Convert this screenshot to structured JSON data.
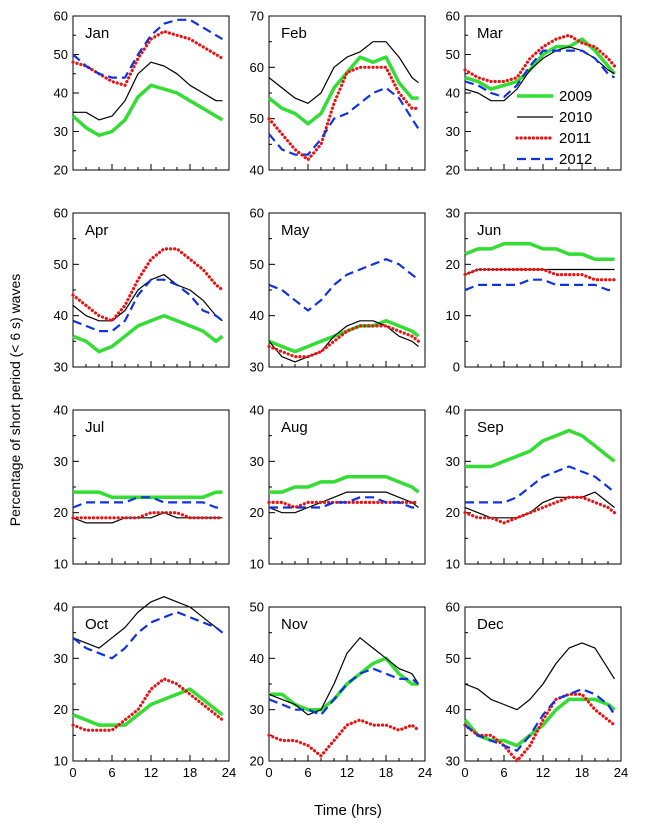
{
  "figure": {
    "ylabel": "Percentage of short period (< 6 s) waves",
    "xlabel": "Time (hrs)",
    "x_ticks": [
      "0",
      "6",
      "12",
      "18",
      "24"
    ],
    "legend": {
      "placement": "inside Mar panel, lower-right",
      "entries": [
        "2009",
        "2010",
        "2011",
        "2012"
      ]
    }
  },
  "series_styles": {
    "2009": {
      "color": "#33dd33",
      "dash": "solid",
      "width": 3.5
    },
    "2010": {
      "color": "#000000",
      "dash": "solid",
      "width": 1.2
    },
    "2011": {
      "color": "#ee1111",
      "dash": "dotted",
      "width": 3.2
    },
    "2012": {
      "color": "#1133dd",
      "dash": "dashed",
      "width": 2.2
    }
  },
  "chart_data": [
    {
      "type": "line",
      "title": "Jan",
      "xlim": [
        0,
        24
      ],
      "ylim": [
        20,
        60
      ],
      "yticks": [
        20,
        30,
        40,
        50,
        60
      ],
      "x": [
        0,
        2,
        4,
        6,
        8,
        10,
        12,
        14,
        16,
        18,
        20,
        22,
        23
      ],
      "series": [
        {
          "name": "2009",
          "values": [
            34,
            31,
            29,
            30,
            33,
            39,
            42,
            41,
            40,
            38,
            36,
            34,
            33
          ]
        },
        {
          "name": "2010",
          "values": [
            35,
            35,
            33,
            34,
            38,
            45,
            48,
            47,
            45,
            42,
            40,
            38,
            38
          ]
        },
        {
          "name": "2011",
          "values": [
            48,
            47,
            45,
            43,
            42,
            49,
            54,
            56,
            55,
            54,
            52,
            50,
            49
          ]
        },
        {
          "name": "2012",
          "values": [
            50,
            47,
            45,
            44,
            44,
            50,
            55,
            58,
            59,
            59,
            57,
            55,
            54
          ]
        }
      ]
    },
    {
      "type": "line",
      "title": "Feb",
      "xlim": [
        0,
        24
      ],
      "ylim": [
        40,
        70
      ],
      "yticks": [
        40,
        50,
        60,
        70
      ],
      "x": [
        0,
        2,
        4,
        6,
        8,
        10,
        12,
        14,
        16,
        18,
        20,
        22,
        23
      ],
      "series": [
        {
          "name": "2009",
          "values": [
            54,
            52,
            51,
            49,
            51,
            56,
            59,
            62,
            61,
            62,
            57,
            54,
            54
          ]
        },
        {
          "name": "2010",
          "values": [
            58,
            56,
            54,
            53,
            55,
            60,
            62,
            63,
            65,
            65,
            62,
            58,
            57
          ]
        },
        {
          "name": "2011",
          "values": [
            50,
            47,
            44,
            42,
            45,
            53,
            59,
            60,
            60,
            60,
            55,
            52,
            52
          ]
        },
        {
          "name": "2012",
          "values": [
            47,
            44,
            43,
            43,
            46,
            50,
            51,
            53,
            55,
            56,
            54,
            50,
            48
          ]
        }
      ]
    },
    {
      "type": "line",
      "title": "Mar",
      "xlim": [
        0,
        24
      ],
      "ylim": [
        20,
        60
      ],
      "yticks": [
        20,
        30,
        40,
        50,
        60
      ],
      "x": [
        0,
        2,
        4,
        6,
        8,
        10,
        12,
        14,
        16,
        18,
        20,
        22,
        23
      ],
      "series": [
        {
          "name": "2009",
          "values": [
            44,
            43,
            41,
            42,
            43,
            46,
            50,
            52,
            52,
            54,
            51,
            47,
            45
          ]
        },
        {
          "name": "2010",
          "values": [
            41,
            40,
            38,
            38,
            41,
            46,
            49,
            51,
            52,
            51,
            49,
            46,
            45
          ]
        },
        {
          "name": "2011",
          "values": [
            46,
            44,
            43,
            43,
            44,
            49,
            52,
            54,
            55,
            53,
            52,
            49,
            47
          ]
        },
        {
          "name": "2012",
          "values": [
            43,
            42,
            40,
            39,
            42,
            47,
            51,
            51,
            51,
            51,
            49,
            45,
            44
          ]
        }
      ]
    },
    {
      "type": "line",
      "title": "Apr",
      "xlim": [
        0,
        24
      ],
      "ylim": [
        30,
        60
      ],
      "yticks": [
        30,
        40,
        50,
        60
      ],
      "x": [
        0,
        2,
        4,
        6,
        8,
        10,
        12,
        14,
        16,
        18,
        20,
        22,
        23
      ],
      "series": [
        {
          "name": "2009",
          "values": [
            36,
            35,
            33,
            34,
            36,
            38,
            39,
            40,
            39,
            38,
            37,
            35,
            36
          ]
        },
        {
          "name": "2010",
          "values": [
            42,
            40,
            39,
            39,
            41,
            45,
            47,
            48,
            46,
            45,
            43,
            40,
            39
          ]
        },
        {
          "name": "2011",
          "values": [
            44,
            42,
            40,
            39,
            42,
            47,
            51,
            53,
            53,
            51,
            49,
            46,
            45
          ]
        },
        {
          "name": "2012",
          "values": [
            39,
            38,
            37,
            37,
            39,
            44,
            47,
            47,
            46,
            44,
            41,
            40,
            39
          ]
        }
      ]
    },
    {
      "type": "line",
      "title": "May",
      "xlim": [
        0,
        24
      ],
      "ylim": [
        30,
        60
      ],
      "yticks": [
        30,
        40,
        50,
        60
      ],
      "x": [
        0,
        2,
        4,
        6,
        8,
        10,
        12,
        14,
        16,
        18,
        20,
        22,
        23
      ],
      "series": [
        {
          "name": "2009",
          "values": [
            35,
            34,
            33,
            34,
            35,
            36,
            37,
            38,
            38,
            39,
            38,
            37,
            36
          ]
        },
        {
          "name": "2010",
          "values": [
            35,
            32,
            31,
            32,
            33,
            36,
            38,
            39,
            39,
            38,
            36,
            35,
            34
          ]
        },
        {
          "name": "2011",
          "values": [
            34,
            33,
            32,
            32,
            33,
            35,
            37,
            38,
            38,
            38,
            37,
            36,
            35
          ]
        },
        {
          "name": "2012",
          "values": [
            46,
            45,
            43,
            41,
            43,
            46,
            48,
            49,
            50,
            51,
            50,
            48,
            47
          ]
        }
      ]
    },
    {
      "type": "line",
      "title": "Jun",
      "xlim": [
        0,
        24
      ],
      "ylim": [
        0,
        30
      ],
      "yticks": [
        0,
        10,
        20,
        30
      ],
      "x": [
        0,
        2,
        4,
        6,
        8,
        10,
        12,
        14,
        16,
        18,
        20,
        22,
        23
      ],
      "series": [
        {
          "name": "2009",
          "values": [
            22,
            23,
            23,
            24,
            24,
            24,
            23,
            23,
            22,
            22,
            21,
            21,
            21
          ]
        },
        {
          "name": "2010",
          "values": [
            18,
            19,
            19,
            19,
            19,
            19,
            19,
            19,
            19,
            19,
            19,
            19,
            19
          ]
        },
        {
          "name": "2011",
          "values": [
            18,
            19,
            19,
            19,
            19,
            19,
            19,
            18,
            18,
            18,
            17,
            17,
            17
          ]
        },
        {
          "name": "2012",
          "values": [
            15,
            16,
            16,
            16,
            16,
            17,
            17,
            16,
            16,
            16,
            16,
            15,
            15
          ]
        }
      ]
    },
    {
      "type": "line",
      "title": "Jul",
      "xlim": [
        0,
        24
      ],
      "ylim": [
        10,
        40
      ],
      "yticks": [
        10,
        20,
        30,
        40
      ],
      "x": [
        0,
        2,
        4,
        6,
        8,
        10,
        12,
        14,
        16,
        18,
        20,
        22,
        23
      ],
      "series": [
        {
          "name": "2009",
          "values": [
            24,
            24,
            24,
            23,
            23,
            23,
            23,
            23,
            23,
            23,
            23,
            24,
            24
          ]
        },
        {
          "name": "2010",
          "values": [
            19,
            18,
            18,
            18,
            19,
            19,
            19,
            20,
            19,
            19,
            19,
            19,
            19
          ]
        },
        {
          "name": "2011",
          "values": [
            19,
            19,
            19,
            19,
            19,
            19,
            20,
            20,
            20,
            19,
            19,
            19,
            19
          ]
        },
        {
          "name": "2012",
          "values": [
            21,
            22,
            22,
            22,
            22,
            23,
            23,
            22,
            22,
            22,
            22,
            21,
            21
          ]
        }
      ]
    },
    {
      "type": "line",
      "title": "Aug",
      "xlim": [
        0,
        24
      ],
      "ylim": [
        10,
        40
      ],
      "yticks": [
        10,
        20,
        30,
        40
      ],
      "x": [
        0,
        2,
        4,
        6,
        8,
        10,
        12,
        14,
        16,
        18,
        20,
        22,
        23
      ],
      "series": [
        {
          "name": "2009",
          "values": [
            24,
            24,
            25,
            25,
            26,
            26,
            27,
            27,
            27,
            27,
            26,
            25,
            24
          ]
        },
        {
          "name": "2010",
          "values": [
            21,
            20,
            20,
            21,
            22,
            23,
            24,
            24,
            24,
            24,
            23,
            22,
            21
          ]
        },
        {
          "name": "2011",
          "values": [
            22,
            22,
            21,
            22,
            22,
            22,
            22,
            22,
            22,
            22,
            22,
            22,
            22
          ]
        },
        {
          "name": "2012",
          "values": [
            21,
            21,
            21,
            21,
            21,
            22,
            22,
            23,
            23,
            22,
            22,
            21,
            21
          ]
        }
      ]
    },
    {
      "type": "line",
      "title": "Sep",
      "xlim": [
        0,
        24
      ],
      "ylim": [
        10,
        40
      ],
      "yticks": [
        10,
        20,
        30,
        40
      ],
      "x": [
        0,
        2,
        4,
        6,
        8,
        10,
        12,
        14,
        16,
        18,
        20,
        22,
        23
      ],
      "series": [
        {
          "name": "2009",
          "values": [
            29,
            29,
            29,
            30,
            31,
            32,
            34,
            35,
            36,
            35,
            33,
            31,
            30
          ]
        },
        {
          "name": "2010",
          "values": [
            21,
            20,
            19,
            19,
            19,
            20,
            22,
            23,
            23,
            23,
            24,
            22,
            21
          ]
        },
        {
          "name": "2011",
          "values": [
            20,
            19,
            19,
            18,
            19,
            20,
            21,
            22,
            23,
            23,
            22,
            21,
            20
          ]
        },
        {
          "name": "2012",
          "values": [
            22,
            22,
            22,
            22,
            23,
            25,
            27,
            28,
            29,
            28,
            27,
            25,
            24
          ]
        }
      ]
    },
    {
      "type": "line",
      "title": "Oct",
      "xlim": [
        0,
        24
      ],
      "ylim": [
        10,
        40
      ],
      "yticks": [
        10,
        20,
        30,
        40
      ],
      "x": [
        0,
        2,
        4,
        6,
        8,
        10,
        12,
        14,
        16,
        18,
        20,
        22,
        23
      ],
      "series": [
        {
          "name": "2009",
          "values": [
            19,
            18,
            17,
            17,
            17,
            19,
            21,
            22,
            23,
            24,
            22,
            20,
            19
          ]
        },
        {
          "name": "2010",
          "values": [
            34,
            33,
            32,
            34,
            36,
            39,
            41,
            42,
            41,
            40,
            38,
            36,
            35
          ]
        },
        {
          "name": "2011",
          "values": [
            17,
            16,
            16,
            16,
            18,
            20,
            24,
            26,
            25,
            23,
            21,
            19,
            18
          ]
        },
        {
          "name": "2012",
          "values": [
            34,
            32,
            31,
            30,
            32,
            35,
            37,
            38,
            39,
            38,
            37,
            36,
            35
          ]
        }
      ]
    },
    {
      "type": "line",
      "title": "Nov",
      "xlim": [
        0,
        24
      ],
      "ylim": [
        20,
        50
      ],
      "yticks": [
        20,
        30,
        40,
        50
      ],
      "x": [
        0,
        2,
        4,
        6,
        8,
        10,
        12,
        14,
        16,
        18,
        20,
        22,
        23
      ],
      "series": [
        {
          "name": "2009",
          "values": [
            33,
            33,
            31,
            30,
            30,
            32,
            35,
            37,
            39,
            40,
            37,
            35,
            35
          ]
        },
        {
          "name": "2010",
          "values": [
            33,
            32,
            31,
            29,
            30,
            35,
            41,
            44,
            42,
            40,
            38,
            37,
            35
          ]
        },
        {
          "name": "2011",
          "values": [
            25,
            24,
            24,
            23,
            21,
            24,
            27,
            28,
            27,
            27,
            26,
            27,
            26
          ]
        },
        {
          "name": "2012",
          "values": [
            32,
            31,
            30,
            30,
            29,
            32,
            35,
            37,
            38,
            37,
            36,
            36,
            35
          ]
        }
      ]
    },
    {
      "type": "line",
      "title": "Dec",
      "xlim": [
        0,
        24
      ],
      "ylim": [
        30,
        60
      ],
      "yticks": [
        30,
        40,
        50,
        60
      ],
      "x": [
        0,
        2,
        4,
        6,
        8,
        10,
        12,
        14,
        16,
        18,
        20,
        22,
        23
      ],
      "series": [
        {
          "name": "2009",
          "values": [
            38,
            35,
            34,
            34,
            33,
            35,
            37,
            40,
            42,
            42,
            42,
            41,
            40
          ]
        },
        {
          "name": "2010",
          "values": [
            45,
            44,
            42,
            41,
            40,
            42,
            45,
            49,
            52,
            53,
            52,
            48,
            46
          ]
        },
        {
          "name": "2011",
          "values": [
            37,
            35,
            35,
            33,
            30,
            33,
            38,
            42,
            43,
            43,
            40,
            38,
            37
          ]
        },
        {
          "name": "2012",
          "values": [
            37,
            35,
            34,
            33,
            32,
            35,
            39,
            42,
            43,
            44,
            43,
            41,
            39
          ]
        }
      ]
    }
  ]
}
